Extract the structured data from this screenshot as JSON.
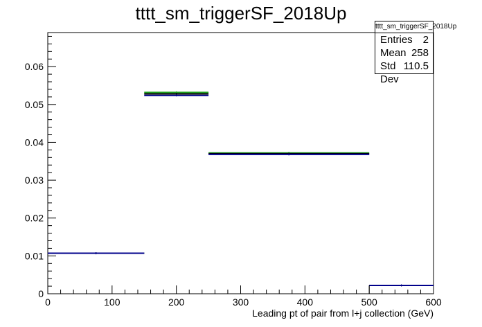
{
  "title": "tttt_sm_triggerSF_2018Up",
  "stats": {
    "title": "tttt_sm_triggerSF_2018Up",
    "rows": [
      {
        "label": "Entries",
        "value": "2"
      },
      {
        "label": "Mean",
        "value": "258"
      },
      {
        "label": "Std Dev",
        "value": "110.5"
      }
    ]
  },
  "chart_data": {
    "type": "bar",
    "title": "tttt_sm_triggerSF_2018Up",
    "xlabel": "Leading pt of pair from l+j collection (GeV)",
    "ylabel": "",
    "xlim": [
      0,
      600
    ],
    "ylim": [
      0,
      0.069
    ],
    "x_ticks": [
      "0",
      "100",
      "200",
      "300",
      "400",
      "500",
      "600"
    ],
    "y_ticks": [
      "0",
      "0.01",
      "0.02",
      "0.03",
      "0.04",
      "0.05",
      "0.06"
    ],
    "bin_edges": [
      0,
      150,
      250,
      500,
      600
    ],
    "series": [
      {
        "color": "#1f9e1f",
        "values": [
          0.0107,
          0.0532,
          0.0372,
          0.0022
        ]
      },
      {
        "color": "#000000",
        "values": [
          0.0107,
          0.0528,
          0.037,
          0.0022
        ]
      },
      {
        "color": "#00008b",
        "values": [
          0.0107,
          0.0524,
          0.0368,
          0.0022
        ]
      }
    ],
    "grid": false,
    "legend": "top-right"
  }
}
